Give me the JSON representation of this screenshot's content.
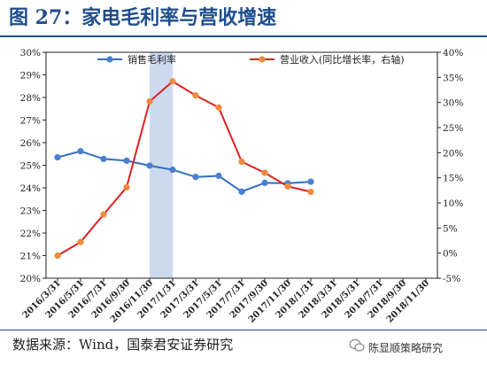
{
  "header": {
    "title": "图 27：家电毛利率与营收增速"
  },
  "footer": {
    "source": "数据来源：Wind，国泰君安证券研究",
    "watermark": "陈显顺策略研究"
  },
  "colors": {
    "left_series": "#2e6fbf",
    "left_marker": "#4a7fcf",
    "right_series": "#e02020",
    "right_marker": "#f08a3c",
    "highlight": "#cdd9ef",
    "title": "#1f4e8c"
  },
  "chart_data": {
    "type": "line",
    "x": [
      "2016/3/31",
      "2016/5/31",
      "2016/7/31",
      "2016/9/30",
      "2016/11/30",
      "2017/1/31",
      "2017/3/31",
      "2017/5/31",
      "2017/7/31",
      "2017/9/30",
      "2017/11/30",
      "2018/1/31",
      "2018/3/31",
      "2018/5/31",
      "2018/7/31",
      "2018/9/30",
      "2018/11/30"
    ],
    "left_axis": {
      "min": 20,
      "max": 30,
      "step": 1,
      "ticks": [
        "20%",
        "21%",
        "22%",
        "23%",
        "24%",
        "25%",
        "26%",
        "27%",
        "28%",
        "29%",
        "30%"
      ]
    },
    "right_axis": {
      "min": -5,
      "max": 40,
      "step": 5,
      "ticks": [
        "-5%",
        "0%",
        "5%",
        "10%",
        "15%",
        "20%",
        "25%",
        "30%",
        "35%",
        "40%"
      ]
    },
    "highlight_range": [
      "2016/11/30",
      "2017/1/31"
    ],
    "series": [
      {
        "name": "销售毛利率",
        "axis": "left",
        "points": [
          [
            0,
            25.35
          ],
          [
            2,
            25.62
          ],
          [
            4,
            25.28
          ],
          [
            6,
            25.2
          ],
          [
            8,
            24.98
          ],
          [
            10,
            24.8
          ],
          [
            12,
            24.48
          ],
          [
            14,
            24.53
          ],
          [
            16,
            23.83
          ],
          [
            18,
            24.22
          ],
          [
            20,
            24.2
          ],
          [
            22,
            24.27
          ]
        ]
      },
      {
        "name": "营业收入(同比增长率，右轴)",
        "axis": "right",
        "points": [
          [
            0,
            -0.5
          ],
          [
            2,
            2.2
          ],
          [
            4,
            7.7
          ],
          [
            6,
            13.1
          ],
          [
            8,
            30.2
          ],
          [
            10,
            34.2
          ],
          [
            12,
            31.4
          ],
          [
            14,
            29.0
          ],
          [
            16,
            18.2
          ],
          [
            18,
            16.0
          ],
          [
            20,
            13.3
          ],
          [
            22,
            12.2
          ]
        ]
      }
    ]
  }
}
